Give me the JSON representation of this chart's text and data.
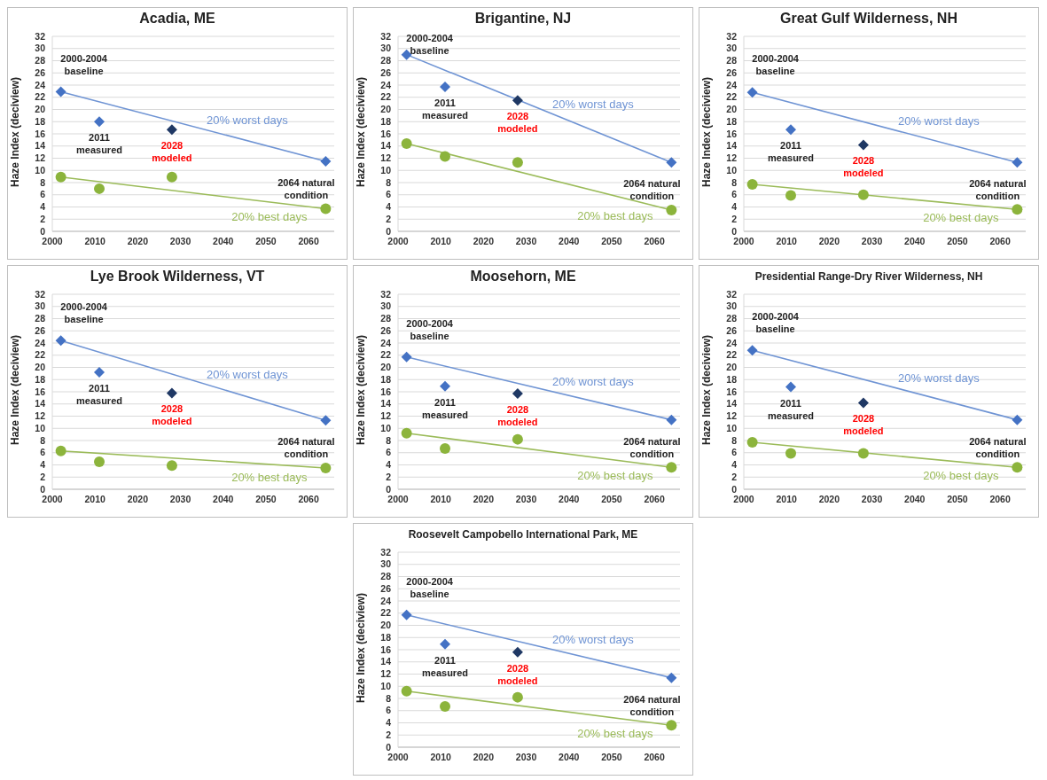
{
  "chart_data": [
    {
      "type": "scatter",
      "title": "Acadia, ME",
      "ylabel": "Haze Index (deciview)",
      "xlim": [
        2000,
        2066
      ],
      "xticks": [
        2000,
        2010,
        2020,
        2030,
        2040,
        2050,
        2060
      ],
      "ylim": [
        0,
        32
      ],
      "yticks": [
        0,
        2,
        4,
        6,
        8,
        10,
        12,
        14,
        16,
        18,
        20,
        22,
        24,
        26,
        28,
        30,
        32
      ],
      "grid": "y",
      "series": [
        {
          "type": "line",
          "name": "20% worst days",
          "color": "#6f94d4",
          "x": [
            2002,
            2064
          ],
          "values": [
            22.9,
            11.5
          ]
        },
        {
          "marker": "diamond",
          "color": "#4472c4",
          "x": [
            2002,
            2011,
            2064
          ],
          "values": [
            22.9,
            18.0,
            11.5
          ]
        },
        {
          "marker": "diamond",
          "color": "#1f3864",
          "x": [
            2028
          ],
          "values": [
            16.7
          ]
        },
        {
          "type": "line",
          "name": "20% best days",
          "color": "#9bbb59",
          "x": [
            2002,
            2064
          ],
          "values": [
            8.9,
            3.7
          ]
        },
        {
          "marker": "circle",
          "color": "#8cb43c",
          "x": [
            2002,
            2011,
            2028,
            2064
          ],
          "values": [
            8.9,
            7.0,
            8.9,
            3.7
          ]
        }
      ],
      "annotations": [
        {
          "text": "2000-2004 baseline",
          "x": 2002,
          "y": 22.9
        },
        {
          "text": "2011 measured",
          "x": 2011,
          "y": 18.0
        },
        {
          "text": "2028 modeled",
          "x": 2028,
          "y": 16.7
        },
        {
          "text": "2064 natural condition",
          "x": 2064,
          "y": 11.5
        }
      ]
    },
    {
      "type": "scatter",
      "title": "Brigantine, NJ",
      "ylabel": "Haze Index (deciview)",
      "xlim": [
        2000,
        2066
      ],
      "xticks": [
        2000,
        2010,
        2020,
        2030,
        2040,
        2050,
        2060
      ],
      "ylim": [
        0,
        32
      ],
      "yticks": [
        0,
        2,
        4,
        6,
        8,
        10,
        12,
        14,
        16,
        18,
        20,
        22,
        24,
        26,
        28,
        30,
        32
      ],
      "grid": "y",
      "series": [
        {
          "type": "line",
          "name": "20% worst days",
          "color": "#6f94d4",
          "x": [
            2002,
            2064
          ],
          "values": [
            29.0,
            11.3
          ]
        },
        {
          "marker": "diamond",
          "color": "#4472c4",
          "x": [
            2002,
            2011,
            2064
          ],
          "values": [
            29.0,
            23.7,
            11.3
          ]
        },
        {
          "marker": "diamond",
          "color": "#1f3864",
          "x": [
            2028
          ],
          "values": [
            21.5
          ]
        },
        {
          "type": "line",
          "name": "20% best days",
          "color": "#9bbb59",
          "x": [
            2002,
            2064
          ],
          "values": [
            14.4,
            3.5
          ]
        },
        {
          "marker": "circle",
          "color": "#8cb43c",
          "x": [
            2002,
            2011,
            2028,
            2064
          ],
          "values": [
            14.4,
            12.3,
            11.3,
            3.5
          ]
        }
      ],
      "annotations": [
        {
          "text": "2000-2004 baseline",
          "x": 2002,
          "y": 29.0
        },
        {
          "text": "2011 measured",
          "x": 2011,
          "y": 23.7
        },
        {
          "text": "2028 modeled",
          "x": 2028,
          "y": 21.5
        },
        {
          "text": "2064 natural condition",
          "x": 2064,
          "y": 11.3
        }
      ]
    },
    {
      "type": "scatter",
      "title": "Great Gulf Wilderness, NH",
      "ylabel": "Haze Index (deciview)",
      "xlim": [
        2000,
        2066
      ],
      "xticks": [
        2000,
        2010,
        2020,
        2030,
        2040,
        2050,
        2060
      ],
      "ylim": [
        0,
        32
      ],
      "yticks": [
        0,
        2,
        4,
        6,
        8,
        10,
        12,
        14,
        16,
        18,
        20,
        22,
        24,
        26,
        28,
        30,
        32
      ],
      "grid": "y",
      "series": [
        {
          "type": "line",
          "name": "20% worst days",
          "color": "#6f94d4",
          "x": [
            2002,
            2064
          ],
          "values": [
            22.8,
            11.3
          ]
        },
        {
          "marker": "diamond",
          "color": "#4472c4",
          "x": [
            2002,
            2011,
            2064
          ],
          "values": [
            22.8,
            16.7,
            11.3
          ]
        },
        {
          "marker": "diamond",
          "color": "#1f3864",
          "x": [
            2028
          ],
          "values": [
            14.2
          ]
        },
        {
          "type": "line",
          "name": "20% best days",
          "color": "#9bbb59",
          "x": [
            2002,
            2064
          ],
          "values": [
            7.7,
            3.6
          ]
        },
        {
          "marker": "circle",
          "color": "#8cb43c",
          "x": [
            2002,
            2011,
            2028,
            2064
          ],
          "values": [
            7.7,
            5.9,
            6.0,
            3.6
          ]
        }
      ],
      "annotations": [
        {
          "text": "2000-2004 baseline",
          "x": 2002,
          "y": 22.8
        },
        {
          "text": "2011 measured",
          "x": 2011,
          "y": 16.7
        },
        {
          "text": "2028 modeled",
          "x": 2028,
          "y": 14.2
        },
        {
          "text": "2064 natural condition",
          "x": 2064,
          "y": 11.3
        }
      ]
    },
    {
      "type": "scatter",
      "title": "Lye Brook Wilderness, VT",
      "ylabel": "Haze Index (deciview)",
      "xlim": [
        2000,
        2066
      ],
      "xticks": [
        2000,
        2010,
        2020,
        2030,
        2040,
        2050,
        2060
      ],
      "ylim": [
        0,
        32
      ],
      "yticks": [
        0,
        2,
        4,
        6,
        8,
        10,
        12,
        14,
        16,
        18,
        20,
        22,
        24,
        26,
        28,
        30,
        32
      ],
      "grid": "y",
      "series": [
        {
          "type": "line",
          "name": "20% worst days",
          "color": "#6f94d4",
          "x": [
            2002,
            2064
          ],
          "values": [
            24.4,
            11.3
          ]
        },
        {
          "marker": "diamond",
          "color": "#4472c4",
          "x": [
            2002,
            2011,
            2064
          ],
          "values": [
            24.4,
            19.2,
            11.3
          ]
        },
        {
          "marker": "diamond",
          "color": "#1f3864",
          "x": [
            2028
          ],
          "values": [
            15.8
          ]
        },
        {
          "type": "line",
          "name": "20% best days",
          "color": "#9bbb59",
          "x": [
            2002,
            2064
          ],
          "values": [
            6.3,
            3.5
          ]
        },
        {
          "marker": "circle",
          "color": "#8cb43c",
          "x": [
            2002,
            2011,
            2028,
            2064
          ],
          "values": [
            6.3,
            4.5,
            3.9,
            3.5
          ]
        }
      ],
      "annotations": [
        {
          "text": "2000-2004 baseline",
          "x": 2002,
          "y": 24.4
        },
        {
          "text": "2011 measured",
          "x": 2011,
          "y": 19.2
        },
        {
          "text": "2028 modeled",
          "x": 2028,
          "y": 15.8
        },
        {
          "text": "2064 natural condition",
          "x": 2064,
          "y": 11.3
        }
      ]
    },
    {
      "type": "scatter",
      "title": "Moosehorn, ME",
      "ylabel": "Haze Index (deciview)",
      "xlim": [
        2000,
        2066
      ],
      "xticks": [
        2000,
        2010,
        2020,
        2030,
        2040,
        2050,
        2060
      ],
      "ylim": [
        0,
        32
      ],
      "yticks": [
        0,
        2,
        4,
        6,
        8,
        10,
        12,
        14,
        16,
        18,
        20,
        22,
        24,
        26,
        28,
        30,
        32
      ],
      "grid": "y",
      "series": [
        {
          "type": "line",
          "name": "20% worst days",
          "color": "#6f94d4",
          "x": [
            2002,
            2064
          ],
          "values": [
            21.7,
            11.4
          ]
        },
        {
          "marker": "diamond",
          "color": "#4472c4",
          "x": [
            2002,
            2011,
            2064
          ],
          "values": [
            21.7,
            16.9,
            11.4
          ]
        },
        {
          "marker": "diamond",
          "color": "#1f3864",
          "x": [
            2028
          ],
          "values": [
            15.7
          ]
        },
        {
          "type": "line",
          "name": "20% best days",
          "color": "#9bbb59",
          "x": [
            2002,
            2064
          ],
          "values": [
            9.2,
            3.6
          ]
        },
        {
          "marker": "circle",
          "color": "#8cb43c",
          "x": [
            2002,
            2011,
            2028,
            2064
          ],
          "values": [
            9.2,
            6.7,
            8.2,
            3.6
          ]
        }
      ],
      "annotations": [
        {
          "text": "2000-2004 baseline",
          "x": 2002,
          "y": 21.7
        },
        {
          "text": "2011 measured",
          "x": 2011,
          "y": 16.9
        },
        {
          "text": "2028 modeled",
          "x": 2028,
          "y": 15.7
        },
        {
          "text": "2064 natural condition",
          "x": 2064,
          "y": 11.4
        }
      ]
    },
    {
      "type": "scatter",
      "title": "Presidential Range-Dry River Wilderness, NH",
      "ylabel": "Haze Index (deciview)",
      "xlim": [
        2000,
        2066
      ],
      "xticks": [
        2000,
        2010,
        2020,
        2030,
        2040,
        2050,
        2060
      ],
      "ylim": [
        0,
        32
      ],
      "yticks": [
        0,
        2,
        4,
        6,
        8,
        10,
        12,
        14,
        16,
        18,
        20,
        22,
        24,
        26,
        28,
        30,
        32
      ],
      "grid": "y",
      "series": [
        {
          "type": "line",
          "name": "20% worst days",
          "color": "#6f94d4",
          "x": [
            2002,
            2064
          ],
          "values": [
            22.8,
            11.4
          ]
        },
        {
          "marker": "diamond",
          "color": "#4472c4",
          "x": [
            2002,
            2011,
            2064
          ],
          "values": [
            22.8,
            16.8,
            11.4
          ]
        },
        {
          "marker": "diamond",
          "color": "#1f3864",
          "x": [
            2028
          ],
          "values": [
            14.2
          ]
        },
        {
          "type": "line",
          "name": "20% best days",
          "color": "#9bbb59",
          "x": [
            2002,
            2064
          ],
          "values": [
            7.7,
            3.6
          ]
        },
        {
          "marker": "circle",
          "color": "#8cb43c",
          "x": [
            2002,
            2011,
            2028,
            2064
          ],
          "values": [
            7.7,
            5.9,
            5.9,
            3.6
          ]
        }
      ],
      "annotations": [
        {
          "text": "2000-2004 baseline",
          "x": 2002,
          "y": 22.8
        },
        {
          "text": "2011 measured",
          "x": 2011,
          "y": 16.8
        },
        {
          "text": "2028 modeled",
          "x": 2028,
          "y": 14.2
        },
        {
          "text": "2064 natural condition",
          "x": 2064,
          "y": 11.4
        }
      ]
    },
    {
      "type": "scatter",
      "title": "Roosevelt Campobello International Park, ME",
      "ylabel": "Haze Index (deciview)",
      "xlim": [
        2000,
        2066
      ],
      "xticks": [
        2000,
        2010,
        2020,
        2030,
        2040,
        2050,
        2060
      ],
      "ylim": [
        0,
        32
      ],
      "yticks": [
        0,
        2,
        4,
        6,
        8,
        10,
        12,
        14,
        16,
        18,
        20,
        22,
        24,
        26,
        28,
        30,
        32
      ],
      "grid": "y",
      "series": [
        {
          "type": "line",
          "name": "20% worst days",
          "color": "#6f94d4",
          "x": [
            2002,
            2064
          ],
          "values": [
            21.7,
            11.4
          ]
        },
        {
          "marker": "diamond",
          "color": "#4472c4",
          "x": [
            2002,
            2011,
            2064
          ],
          "values": [
            21.7,
            16.9,
            11.4
          ]
        },
        {
          "marker": "diamond",
          "color": "#1f3864",
          "x": [
            2028
          ],
          "values": [
            15.6
          ]
        },
        {
          "type": "line",
          "name": "20% best days",
          "color": "#9bbb59",
          "x": [
            2002,
            2064
          ],
          "values": [
            9.2,
            3.6
          ]
        },
        {
          "marker": "circle",
          "color": "#8cb43c",
          "x": [
            2002,
            2011,
            2028,
            2064
          ],
          "values": [
            9.2,
            6.7,
            8.2,
            3.6
          ]
        }
      ],
      "annotations": [
        {
          "text": "2000-2004 baseline",
          "x": 2002,
          "y": 21.7
        },
        {
          "text": "2011 measured",
          "x": 2011,
          "y": 16.9
        },
        {
          "text": "2028 modeled",
          "x": 2028,
          "y": 15.6
        },
        {
          "text": "2064 natural condition",
          "x": 2064,
          "y": 11.4
        }
      ]
    }
  ]
}
